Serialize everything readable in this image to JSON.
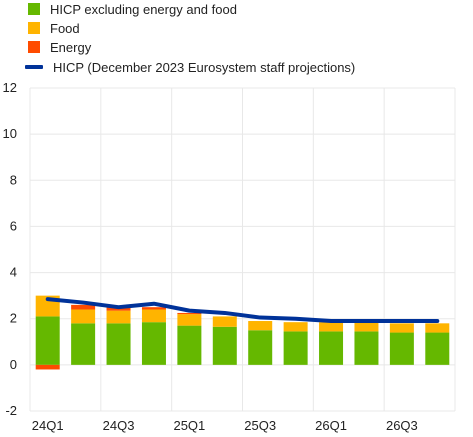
{
  "chart_data": {
    "type": "bar",
    "stacked": true,
    "categories": [
      "24Q1",
      "24Q2",
      "24Q3",
      "24Q4",
      "25Q1",
      "25Q2",
      "25Q3",
      "25Q4",
      "26Q1",
      "26Q2",
      "26Q3",
      "26Q4"
    ],
    "x_tick_labels": [
      "24Q1",
      "",
      "24Q3",
      "",
      "25Q1",
      "",
      "25Q3",
      "",
      "26Q1",
      "",
      "26Q3",
      ""
    ],
    "ylim": [
      -2,
      12
    ],
    "yticks": [
      -2,
      0,
      2,
      4,
      6,
      8,
      10,
      12
    ],
    "grid": true,
    "legend_position": "top-left",
    "series": [
      {
        "name": "HICP excluding energy and food",
        "kind": "bar",
        "color": "#65b800",
        "values": [
          2.1,
          1.8,
          1.8,
          1.85,
          1.7,
          1.65,
          1.5,
          1.45,
          1.45,
          1.45,
          1.4,
          1.4
        ]
      },
      {
        "name": "Food",
        "kind": "bar",
        "color": "#ffb400",
        "values": [
          0.9,
          0.6,
          0.55,
          0.55,
          0.5,
          0.45,
          0.4,
          0.4,
          0.4,
          0.4,
          0.4,
          0.4
        ]
      },
      {
        "name": "Energy",
        "kind": "bar",
        "color": "#ff4b00",
        "values": [
          -0.2,
          0.2,
          0.15,
          0.1,
          0.05,
          0.0,
          0.0,
          0.0,
          0.0,
          0.0,
          0.0,
          0.0
        ]
      },
      {
        "name": "HICP (December 2023 Eurosystem staff projections)",
        "kind": "line",
        "color": "#003299",
        "values": [
          2.85,
          2.7,
          2.5,
          2.65,
          2.35,
          2.25,
          2.05,
          2.0,
          1.9,
          1.9,
          1.9,
          1.9
        ]
      }
    ]
  }
}
